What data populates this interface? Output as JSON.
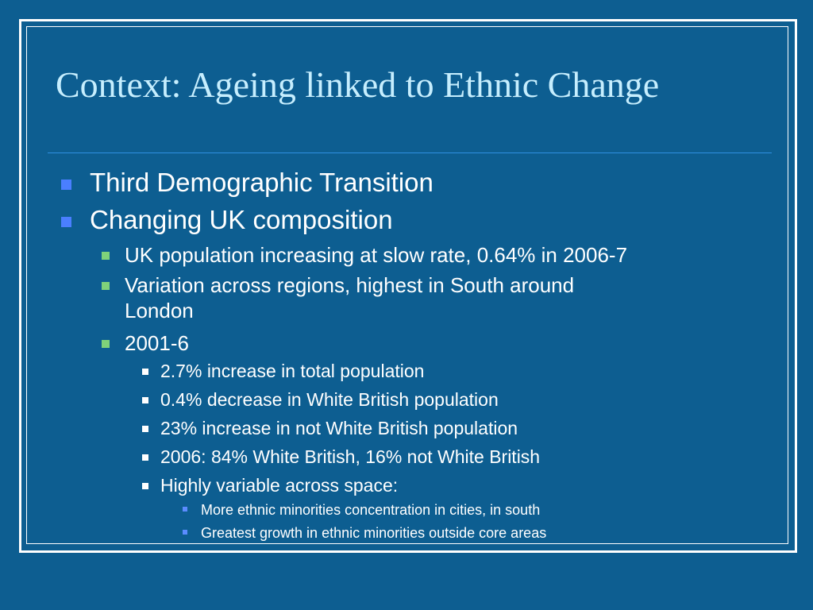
{
  "slide": {
    "title": "Context: Ageing linked to Ethnic Change",
    "bullets": [
      {
        "text": "Third Demographic Transition"
      },
      {
        "text": "Changing UK composition"
      },
      {
        "text": "UK population increasing at slow rate, 0.64% in 2006-7"
      },
      {
        "text_line1": "Variation across regions, highest in South around",
        "text_line2": "London"
      },
      {
        "text": "2001-6"
      },
      {
        "text": "2.7% increase in total population"
      },
      {
        "text": "0.4% decrease in White British population"
      },
      {
        "text": "23% increase in not White British population"
      },
      {
        "text": "2006: 84% White British, 16% not White British"
      },
      {
        "text": "Highly variable across space:"
      },
      {
        "text": "More ethnic minorities concentration in cities, in south"
      },
      {
        "text": "Greatest growth in ethnic minorities outside core areas"
      }
    ]
  },
  "colors": {
    "background": "#0d5e91",
    "title": "#c6eefe",
    "text": "#ffffff",
    "bullet_level1": "#4a7fff",
    "bullet_level2": "#7fd27a",
    "bullet_level3": "#ffffff",
    "bullet_level4": "#5b8cff"
  }
}
